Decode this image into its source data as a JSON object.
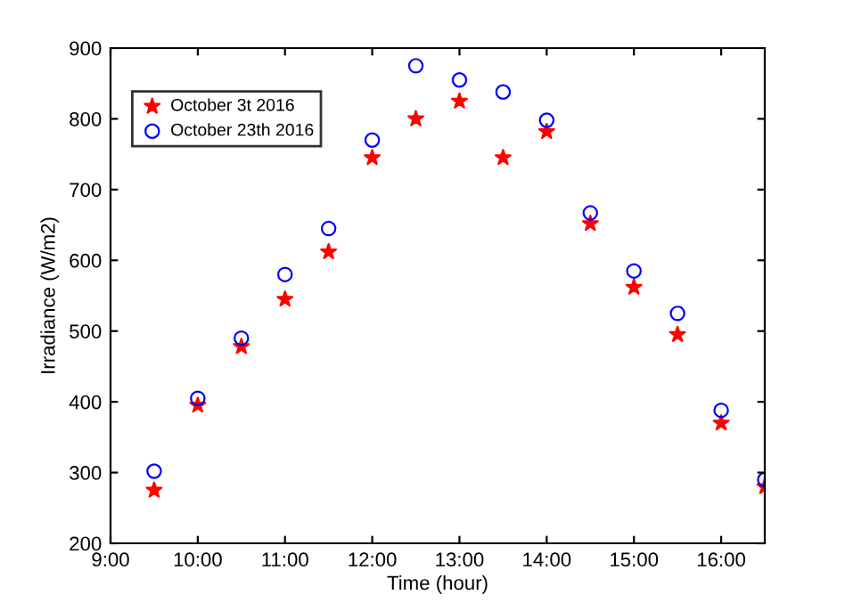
{
  "chart_data": {
    "type": "scatter",
    "xlabel": "Time (hour)",
    "ylabel": "Irradiance (W/m2)",
    "x": [
      9.5,
      10,
      10.5,
      11,
      11.5,
      12,
      12.5,
      13,
      13.5,
      14,
      14.5,
      15,
      15.5,
      16,
      16.5
    ],
    "series": [
      {
        "name": "October 3t 2016",
        "color": "#ff0000",
        "marker": "star",
        "values": [
          275,
          395,
          478,
          545,
          612,
          745,
          800,
          825,
          745,
          782,
          652,
          562,
          495,
          370,
          280
        ]
      },
      {
        "name": "October 23th 2016",
        "color": "#0000ff",
        "marker": "circle",
        "values": [
          302,
          405,
          490,
          580,
          645,
          770,
          875,
          855,
          838,
          798,
          667,
          585,
          525,
          388,
          290
        ]
      }
    ],
    "xlim": [
      9,
      16.5
    ],
    "xticks": [
      {
        "value": 9,
        "label": "9:00"
      },
      {
        "value": 10,
        "label": "10:00"
      },
      {
        "value": 11,
        "label": "11:00"
      },
      {
        "value": 12,
        "label": "12:00"
      },
      {
        "value": 13,
        "label": "13:00"
      },
      {
        "value": 14,
        "label": "14:00"
      },
      {
        "value": 15,
        "label": "15:00"
      },
      {
        "value": 16,
        "label": "16:00"
      }
    ],
    "ylim": [
      200,
      900
    ],
    "yticks": [
      200,
      300,
      400,
      500,
      600,
      700,
      800,
      900
    ],
    "legend": "top left",
    "grid": false
  }
}
